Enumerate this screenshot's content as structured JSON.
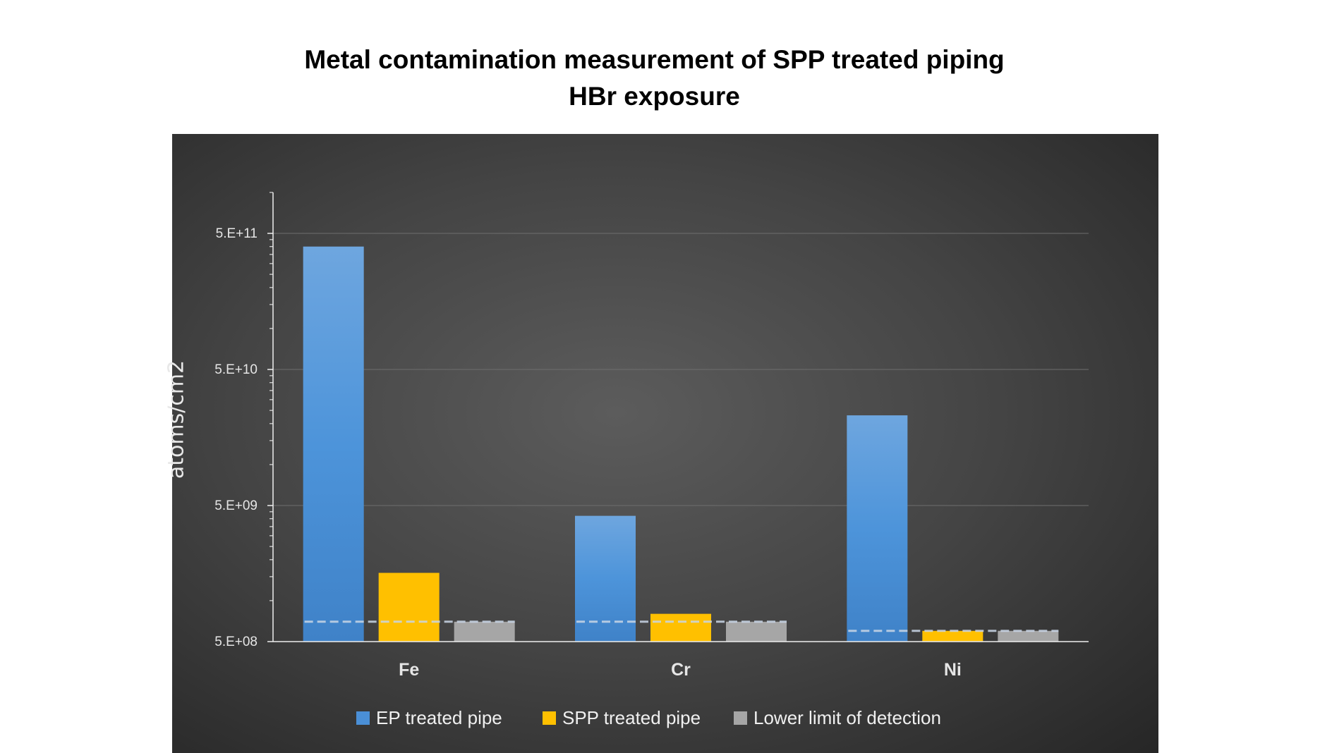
{
  "chart_data": {
    "type": "bar",
    "title": "Metal contamination measurement of SPP treated piping",
    "subtitle": "HBr exposure",
    "xlabel": "",
    "ylabel": "atoms/cm2",
    "yscale": "log",
    "ylim": [
      500000000,
      1000000000000
    ],
    "yticks": [
      500000000,
      5000000000,
      50000000000,
      500000000000
    ],
    "ytick_labels": [
      "5.E+08",
      "5.E+09",
      "5.E+10",
      "5.E+11"
    ],
    "grid": true,
    "legend_position": "bottom",
    "categories": [
      "Fe",
      "Cr",
      "Ni"
    ],
    "series": [
      {
        "name": "EP treated pipe",
        "color": "#4a8fd6",
        "values": [
          400000000000,
          4200000000,
          23000000000
        ]
      },
      {
        "name": "SPP treated pipe",
        "color": "#ffc000",
        "values": [
          1600000000,
          800000000,
          600000000
        ]
      },
      {
        "name": "Lower limit of detection",
        "color": "#a6a6a6",
        "values": [
          700000000,
          700000000,
          600000000
        ]
      }
    ]
  }
}
